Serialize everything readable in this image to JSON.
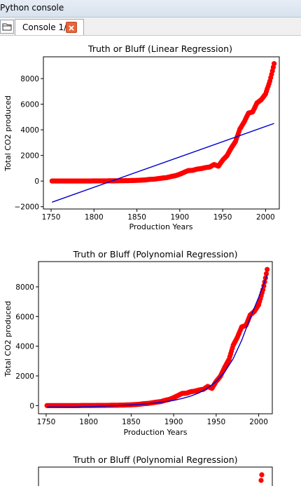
{
  "window": {
    "title": "Python console"
  },
  "tabs": [
    {
      "label": "Console 1/A"
    }
  ],
  "colors": {
    "scatter": "#ff0000",
    "fit_line": "#0000cd"
  },
  "chart_data": [
    {
      "type": "scatter",
      "title": "Truth or Bluff (Linear Regression)",
      "xlabel": "Production Years",
      "ylabel": "Total CO2 produced",
      "xlim": [
        1741,
        2016
      ],
      "ylim": [
        -2180,
        9700
      ],
      "xticks": [
        "1750",
        "1800",
        "1850",
        "1900",
        "1950",
        "2000"
      ],
      "yticks": [
        "−2000",
        "0",
        "2000",
        "4000",
        "6000",
        "8000"
      ],
      "grid": false,
      "series": [
        {
          "kind": "scatter",
          "x": [
            1751,
            1760,
            1770,
            1780,
            1790,
            1800,
            1810,
            1820,
            1830,
            1840,
            1850,
            1855,
            1860,
            1865,
            1870,
            1875,
            1880,
            1885,
            1890,
            1895,
            1900,
            1905,
            1910,
            1915,
            1920,
            1925,
            1930,
            1935,
            1940,
            1945,
            1950,
            1955,
            1960,
            1965,
            1970,
            1975,
            1980,
            1985,
            1990,
            1995,
            2000,
            2005,
            2008,
            2010
          ],
          "y": [
            3,
            3,
            3,
            3,
            5,
            8,
            10,
            14,
            24,
            33,
            54,
            70,
            91,
            130,
            147,
            190,
            236,
            270,
            356,
            420,
            534,
            680,
            820,
            835,
            932,
            975,
            1050,
            1100,
            1290,
            1160,
            1630,
            1980,
            2580,
            3100,
            4060,
            4610,
            5300,
            5400,
            6100,
            6350,
            6800,
            7800,
            8600,
            9170
          ]
        },
        {
          "kind": "line",
          "x": [
            1751,
            2010
          ],
          "y": [
            -1650,
            4500
          ]
        }
      ]
    },
    {
      "type": "scatter",
      "title": "Truth or Bluff (Polynomial Regression)",
      "xlabel": "Production Years",
      "ylabel": "Total CO2 produced",
      "xlim": [
        1741,
        2016
      ],
      "ylim": [
        -550,
        9700
      ],
      "xticks": [
        "1750",
        "1800",
        "1850",
        "1900",
        "1950",
        "2000"
      ],
      "yticks": [
        "0",
        "2000",
        "4000",
        "6000",
        "8000"
      ],
      "grid": false,
      "series": [
        {
          "kind": "scatter",
          "x": [
            1751,
            1760,
            1770,
            1780,
            1790,
            1800,
            1810,
            1820,
            1830,
            1840,
            1850,
            1855,
            1860,
            1865,
            1870,
            1875,
            1880,
            1885,
            1890,
            1895,
            1900,
            1905,
            1910,
            1915,
            1920,
            1925,
            1930,
            1935,
            1940,
            1945,
            1950,
            1955,
            1960,
            1965,
            1970,
            1975,
            1980,
            1985,
            1990,
            1995,
            2000,
            2005,
            2008,
            2010
          ],
          "y": [
            3,
            3,
            3,
            3,
            5,
            8,
            10,
            14,
            24,
            33,
            54,
            70,
            91,
            130,
            147,
            190,
            236,
            270,
            356,
            420,
            534,
            680,
            820,
            835,
            932,
            975,
            1050,
            1100,
            1290,
            1160,
            1630,
            1980,
            2580,
            3100,
            4060,
            4610,
            5300,
            5400,
            6100,
            6350,
            6800,
            7800,
            8600,
            9170
          ]
        },
        {
          "kind": "line",
          "x": [
            1751,
            1780,
            1800,
            1820,
            1840,
            1860,
            1880,
            1900,
            1910,
            1920,
            1930,
            1940,
            1950,
            1960,
            1970,
            1980,
            1990,
            2000,
            2010
          ],
          "y": [
            -90,
            -100,
            -80,
            -40,
            10,
            80,
            180,
            350,
            480,
            640,
            860,
            1180,
            1620,
            2260,
            3160,
            4400,
            5900,
            7300,
            8800
          ]
        }
      ]
    },
    {
      "type": "scatter",
      "title": "Truth or Bluff (Polynomial Regression)"
    }
  ]
}
